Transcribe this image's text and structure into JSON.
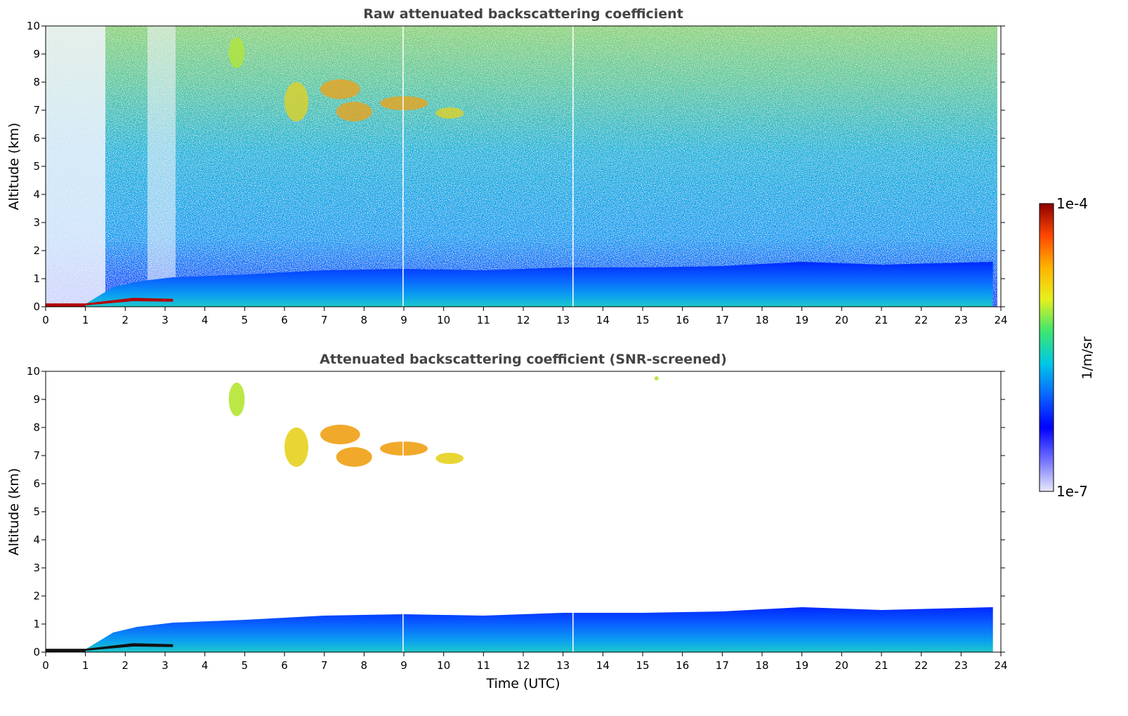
{
  "chart_data": [
    {
      "type": "heatmap",
      "title": "Raw attenuated backscattering coefficient",
      "xlabel": "",
      "ylabel": "Altitude (km)",
      "xlim": [
        0,
        24
      ],
      "ylim": [
        0,
        10
      ],
      "xticks": [
        0,
        1,
        2,
        3,
        4,
        5,
        6,
        7,
        8,
        9,
        10,
        11,
        12,
        13,
        14,
        15,
        16,
        17,
        18,
        19,
        20,
        21,
        22,
        23,
        24
      ],
      "yticks": [
        0,
        1,
        2,
        3,
        4,
        5,
        6,
        7,
        8,
        9,
        10
      ],
      "data_gaps_utc": [
        8.98,
        13.25
      ],
      "boundary_layer_top_km": [
        [
          0,
          0.1
        ],
        [
          1,
          0.1
        ],
        [
          1.7,
          0.7
        ],
        [
          2.3,
          0.9
        ],
        [
          3.2,
          1.05
        ],
        [
          5,
          1.15
        ],
        [
          7,
          1.3
        ],
        [
          9,
          1.35
        ],
        [
          11,
          1.3
        ],
        [
          13,
          1.4
        ],
        [
          15,
          1.4
        ],
        [
          17,
          1.45
        ],
        [
          19,
          1.6
        ],
        [
          21,
          1.5
        ],
        [
          23.8,
          1.6
        ]
      ],
      "cloud_patches": [
        {
          "time": [
            4.6,
            5.0
          ],
          "altitude_km": [
            8.5,
            9.6
          ],
          "level": "medium"
        },
        {
          "time": [
            6.0,
            6.6
          ],
          "altitude_km": [
            6.6,
            8.0
          ],
          "level": "medium-high"
        },
        {
          "time": [
            6.9,
            7.9
          ],
          "altitude_km": [
            7.4,
            8.1
          ],
          "level": "high"
        },
        {
          "time": [
            7.3,
            8.2
          ],
          "altitude_km": [
            6.6,
            7.3
          ],
          "level": "high"
        },
        {
          "time": [
            8.4,
            9.6
          ],
          "altitude_km": [
            7.0,
            7.5
          ],
          "level": "high"
        },
        {
          "time": [
            9.8,
            10.5
          ],
          "altitude_km": [
            6.7,
            7.1
          ],
          "level": "medium-high"
        }
      ]
    },
    {
      "type": "heatmap",
      "title": "Attenuated backscattering coefficient (SNR-screened)",
      "xlabel": "Time (UTC)",
      "ylabel": "Altitude (km)",
      "xlim": [
        0,
        24
      ],
      "ylim": [
        0,
        10
      ],
      "xticks": [
        0,
        1,
        2,
        3,
        4,
        5,
        6,
        7,
        8,
        9,
        10,
        11,
        12,
        13,
        14,
        15,
        16,
        17,
        18,
        19,
        20,
        21,
        22,
        23,
        24
      ],
      "yticks": [
        0,
        1,
        2,
        3,
        4,
        5,
        6,
        7,
        8,
        9,
        10
      ],
      "data_gaps_utc": [
        8.98,
        13.25
      ],
      "cloud_patches": [
        {
          "time": [
            4.6,
            5.0
          ],
          "altitude_km": [
            8.4,
            9.6
          ],
          "level": "medium"
        },
        {
          "time": [
            6.0,
            6.6
          ],
          "altitude_km": [
            6.6,
            8.0
          ],
          "level": "medium-high"
        },
        {
          "time": [
            6.9,
            7.9
          ],
          "altitude_km": [
            7.4,
            8.1
          ],
          "level": "high"
        },
        {
          "time": [
            7.3,
            8.2
          ],
          "altitude_km": [
            6.6,
            7.3
          ],
          "level": "high"
        },
        {
          "time": [
            8.4,
            9.6
          ],
          "altitude_km": [
            7.0,
            7.5
          ],
          "level": "high"
        },
        {
          "time": [
            9.8,
            10.5
          ],
          "altitude_km": [
            6.7,
            7.1
          ],
          "level": "medium-high"
        },
        {
          "time": [
            15.3,
            15.4
          ],
          "altitude_km": [
            9.7,
            9.8
          ],
          "level": "medium"
        }
      ]
    }
  ],
  "colorbar": {
    "max_label": "1e-4",
    "min_label": "1e-7",
    "unit_label": "1/m/sr",
    "stops": [
      "#e8e8f8",
      "#7070ff",
      "#0000ff",
      "#0a64ff",
      "#00c8e6",
      "#3ce66e",
      "#e6f01e",
      "#ffb400",
      "#ff4600",
      "#8c0000"
    ]
  }
}
